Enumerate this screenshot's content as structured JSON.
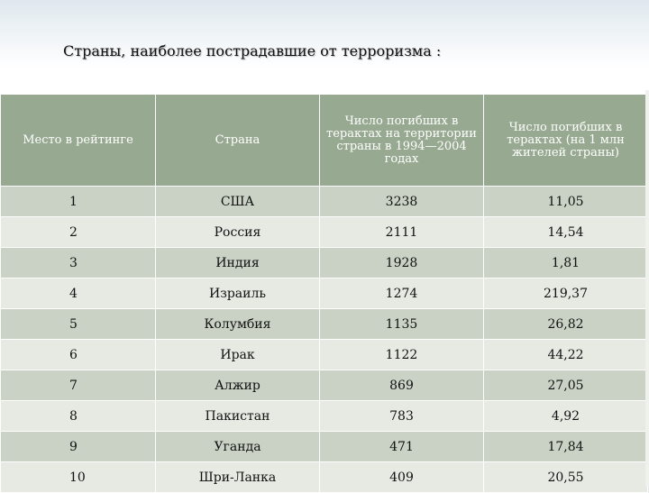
{
  "title": "Страны, наиболее пострадавшие от терроризма :",
  "table": {
    "headers": [
      "Место в рейтинге",
      "Страна",
      "Число погибших в терактах на территории страны в 1994—2004 годах",
      "Число погибших в терактах (на 1 млн жителей страны)"
    ],
    "rows": [
      [
        "1",
        "США",
        "3238",
        "11,05"
      ],
      [
        "2",
        "Россия",
        "2111",
        "14,54"
      ],
      [
        "3",
        "Индия",
        "1928",
        "1,81"
      ],
      [
        "4",
        "Израиль",
        "1274",
        "219,37"
      ],
      [
        "5",
        "Колумбия",
        "1135",
        "26,82"
      ],
      [
        "6",
        "Ирак",
        "1122",
        "44,22"
      ],
      [
        "7",
        "Алжир",
        "869",
        "27,05"
      ],
      [
        "8",
        "Пакистан",
        "783",
        "4,92"
      ],
      [
        "9",
        "Уганда",
        "471",
        "17,84"
      ],
      [
        "10",
        "Шри-Ланка",
        "409",
        "20,55"
      ]
    ]
  }
}
